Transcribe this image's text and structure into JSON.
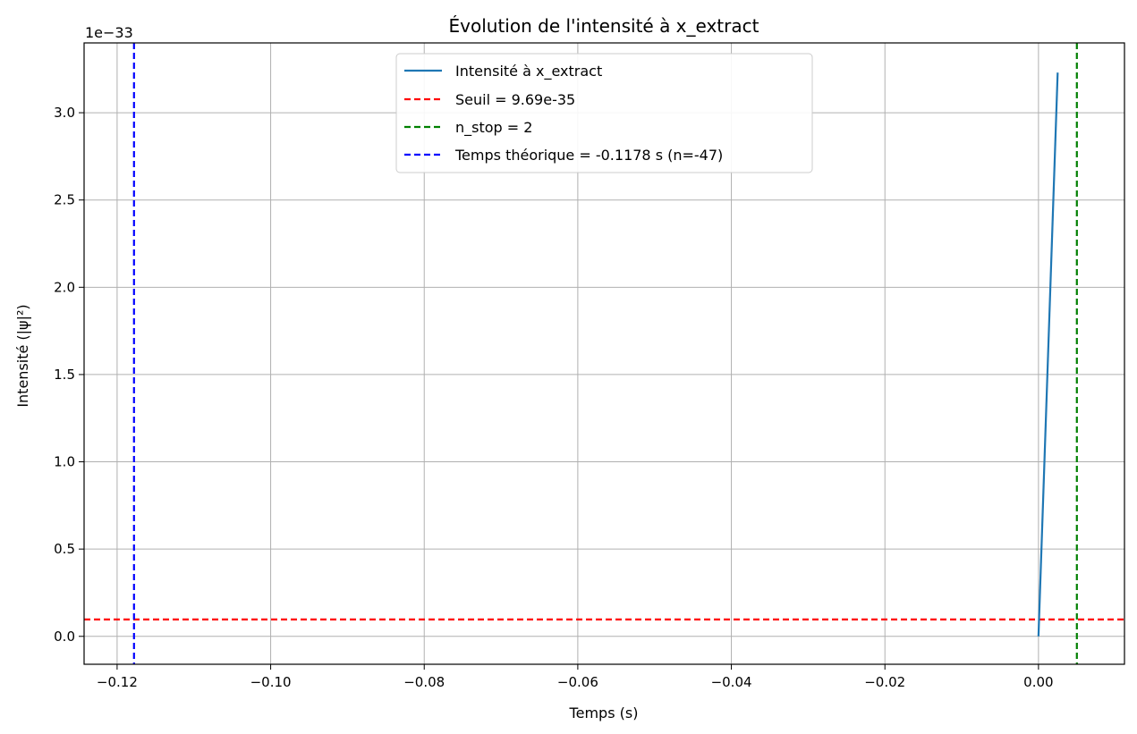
{
  "chart_data": {
    "type": "line",
    "title": "Évolution de l'intensité à x_extract",
    "xlabel": "Temps (s)",
    "ylabel": "Intensité (|ψ|²)",
    "y_offset_label": "1e−33",
    "xlim": [
      -0.1243,
      0.0112
    ],
    "ylim": [
      -0.16,
      3.4
    ],
    "grid": true,
    "legend_position": "top-center",
    "x_ticks": [
      -0.12,
      -0.1,
      -0.08,
      -0.06,
      -0.04,
      -0.02,
      0.0
    ],
    "x_tick_labels": [
      "−0.12",
      "−0.10",
      "−0.08",
      "−0.06",
      "−0.04",
      "−0.02",
      "0.00"
    ],
    "y_ticks": [
      0.0,
      0.5,
      1.0,
      1.5,
      2.0,
      2.5,
      3.0
    ],
    "y_tick_labels": [
      "0.0",
      "0.5",
      "1.0",
      "1.5",
      "2.0",
      "2.5",
      "3.0"
    ],
    "series": [
      {
        "name": "Intensité à x_extract",
        "color": "#1f77b4",
        "style": "solid",
        "x": [
          0.0,
          0.0025
        ],
        "y": [
          0.0,
          3.23
        ]
      }
    ],
    "reference_lines": [
      {
        "name": "Seuil = 9.69e-35",
        "orientation": "horizontal",
        "value": 0.0969,
        "color": "#ff0000",
        "style": "dashed"
      },
      {
        "name": "n_stop = 2",
        "orientation": "vertical",
        "value": 0.005,
        "color": "#008000",
        "style": "dashed"
      },
      {
        "name": "Temps théorique = -0.1178 s (n=-47)",
        "orientation": "vertical",
        "value": -0.1178,
        "color": "#0000ff",
        "style": "dashed"
      }
    ]
  }
}
